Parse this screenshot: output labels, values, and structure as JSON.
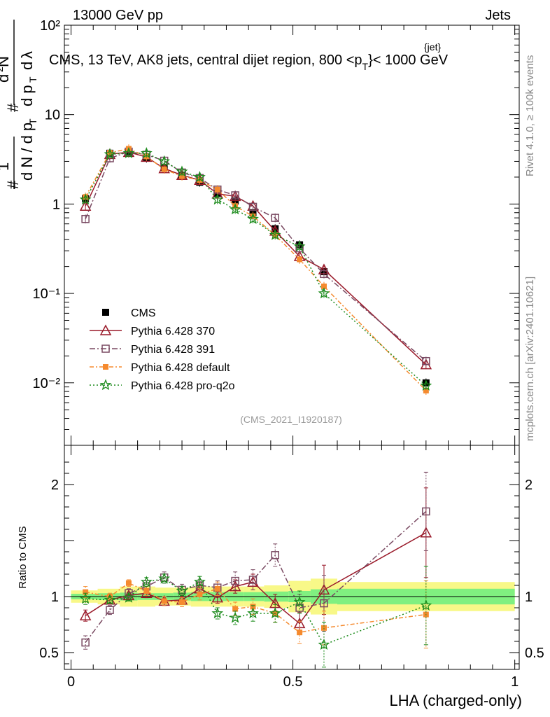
{
  "header": {
    "left": "13000 GeV pp",
    "right": "Jets"
  },
  "side_labels": {
    "rivet": "Rivet 4.1.0, ≥ 100k events",
    "source": "mcplots.cern.ch [arXiv:2401.10621]"
  },
  "main_title": {
    "prefix": "CMS, 13 TeV, AK8 jets, central dijet region, 800 <p",
    "sup": "{jet}",
    "sub": "T",
    "suffix": "}< 1000 GeV"
  },
  "analysis_id": "(CMS_2021_I1920187)",
  "y_axis_label_main": "# 1/dN/dp_T # d²N/dp_T dλ",
  "colors": {
    "cms": "#000000",
    "p370": "#9a1a2a",
    "p391": "#7a4a62",
    "default": "#f58a2e",
    "proq2o": "#1a8a1a",
    "band_inner": "#80f080",
    "band_outer": "#f8f888"
  },
  "chart_data": [
    {
      "type": "line",
      "title": "CMS, 13 TeV, AK8 jets, central dijet region, 800 <p_T^{jet}< 1000 GeV",
      "xlabel": "LHA (charged-only)",
      "ylabel": "1/dN/dp_T d²N/dp_T dλ",
      "yscale": "log",
      "ylim": [
        0.002,
        100
      ],
      "xlim": [
        -0.015,
        1.01
      ],
      "y_ticks": [
        {
          "v": 0.01,
          "label": "10⁻²"
        },
        {
          "v": 0.1,
          "label": "10⁻¹"
        },
        {
          "v": 1,
          "label": "1"
        },
        {
          "v": 10,
          "label": "10"
        },
        {
          "v": 100,
          "label": "10²"
        }
      ],
      "x": [
        0.0325,
        0.0875,
        0.13,
        0.17,
        0.21,
        0.25,
        0.29,
        0.33,
        0.37,
        0.41,
        0.46,
        0.515,
        0.57,
        0.8
      ],
      "legend_position": "bottom-left",
      "series": [
        {
          "name": "CMS",
          "key": "cms",
          "values": [
            1.15,
            3.7,
            3.75,
            3.25,
            2.55,
            2.1,
            1.75,
            1.32,
            1.08,
            0.8,
            0.53,
            0.35,
            0.175,
            0.01
          ]
        },
        {
          "name": "Pythia 6.428 370",
          "key": "p370",
          "values": [
            0.95,
            3.6,
            3.8,
            3.35,
            2.5,
            2.1,
            1.85,
            1.3,
            1.22,
            0.95,
            0.5,
            0.26,
            0.185,
            0.016
          ]
        },
        {
          "name": "Pythia 6.428 391",
          "key": "p391",
          "values": [
            0.68,
            3.25,
            3.85,
            3.55,
            3.05,
            2.25,
            1.95,
            1.45,
            1.25,
            0.93,
            0.7,
            0.32,
            0.165,
            0.0175
          ]
        },
        {
          "name": "Pythia 6.428 default",
          "key": "default",
          "values": [
            1.2,
            3.75,
            4.15,
            3.4,
            2.45,
            2.05,
            1.85,
            1.45,
            0.95,
            0.73,
            0.45,
            0.24,
            0.12,
            0.0082
          ]
        },
        {
          "name": "Pythia 6.428 pro-q2o",
          "key": "proq2o",
          "values": [
            1.12,
            3.6,
            3.7,
            3.7,
            3.0,
            2.3,
            2.0,
            1.12,
            0.87,
            0.68,
            0.45,
            0.335,
            0.1,
            0.0093
          ]
        }
      ]
    },
    {
      "type": "line",
      "title": "",
      "xlabel": "LHA (charged-only)",
      "ylabel": "Ratio to CMS",
      "ylim": [
        0.35,
        2.35
      ],
      "xlim": [
        -0.015,
        1.01
      ],
      "y_ticks": [
        {
          "v": 0.5,
          "label": "0.5"
        },
        {
          "v": 1,
          "label": "1"
        },
        {
          "v": 1.5,
          "label": ""
        },
        {
          "v": 2,
          "label": "2"
        }
      ],
      "x_ticks": [
        {
          "v": 0,
          "label": "0"
        },
        {
          "v": 0.5,
          "label": "0.5"
        },
        {
          "v": 1,
          "label": "1"
        }
      ],
      "x": [
        0.0325,
        0.0875,
        0.13,
        0.17,
        0.21,
        0.25,
        0.29,
        0.33,
        0.37,
        0.41,
        0.46,
        0.515,
        0.57,
        0.8
      ],
      "bins": [
        {
          "x0": 0.0,
          "x1": 0.06,
          "inner": 0.025,
          "outer": 0.055
        },
        {
          "x0": 0.06,
          "x1": 0.11,
          "inner": 0.03,
          "outer": 0.07
        },
        {
          "x0": 0.11,
          "x1": 0.15,
          "inner": 0.035,
          "outer": 0.09
        },
        {
          "x0": 0.15,
          "x1": 0.19,
          "inner": 0.03,
          "outer": 0.09
        },
        {
          "x0": 0.19,
          "x1": 0.23,
          "inner": 0.03,
          "outer": 0.08
        },
        {
          "x0": 0.23,
          "x1": 0.27,
          "inner": 0.035,
          "outer": 0.08
        },
        {
          "x0": 0.27,
          "x1": 0.31,
          "inner": 0.04,
          "outer": 0.09
        },
        {
          "x0": 0.31,
          "x1": 0.35,
          "inner": 0.04,
          "outer": 0.09
        },
        {
          "x0": 0.35,
          "x1": 0.39,
          "inner": 0.04,
          "outer": 0.09
        },
        {
          "x0": 0.39,
          "x1": 0.435,
          "inner": 0.04,
          "outer": 0.09
        },
        {
          "x0": 0.435,
          "x1": 0.49,
          "inner": 0.045,
          "outer": 0.1
        },
        {
          "x0": 0.49,
          "x1": 0.54,
          "inner": 0.05,
          "outer": 0.14
        },
        {
          "x0": 0.54,
          "x1": 0.6,
          "inner": 0.065,
          "outer": 0.16
        },
        {
          "x0": 0.6,
          "x1": 1.0,
          "inner": 0.07,
          "outer": 0.13
        }
      ],
      "series": [
        {
          "name": "Pythia 6.428 370",
          "key": "p370",
          "values": [
            0.83,
            0.97,
            1.01,
            1.03,
            0.96,
            0.97,
            1.07,
            0.99,
            1.09,
            1.13,
            0.94,
            0.76,
            1.06,
            1.57
          ],
          "errors": [
            0.05,
            0.03,
            0.03,
            0.04,
            0.04,
            0.04,
            0.05,
            0.05,
            0.06,
            0.07,
            0.08,
            0.1,
            0.22,
            0.4
          ]
        },
        {
          "name": "Pythia 6.428 391",
          "key": "p391",
          "values": [
            0.59,
            0.88,
            1.03,
            1.09,
            1.17,
            1.06,
            1.1,
            1.08,
            1.14,
            1.15,
            1.37,
            0.9,
            0.94,
            1.76
          ],
          "errors": [
            0.06,
            0.04,
            0.04,
            0.05,
            0.05,
            0.05,
            0.05,
            0.06,
            0.08,
            0.09,
            0.1,
            0.12,
            0.25,
            0.35
          ]
        },
        {
          "name": "Pythia 6.428 default",
          "key": "default",
          "values": [
            1.04,
            1.0,
            1.12,
            1.05,
            0.96,
            0.95,
            1.02,
            1.07,
            0.89,
            0.91,
            0.85,
            0.68,
            0.72,
            0.84
          ],
          "errors": [
            0.05,
            0.03,
            0.03,
            0.04,
            0.04,
            0.04,
            0.05,
            0.06,
            0.06,
            0.07,
            0.08,
            0.1,
            0.15,
            0.3
          ]
        },
        {
          "name": "Pythia 6.428 pro-q2o",
          "key": "proq2o",
          "values": [
            0.98,
            0.97,
            0.99,
            1.13,
            1.16,
            1.05,
            1.13,
            0.85,
            0.81,
            0.85,
            0.85,
            0.95,
            0.57,
            0.92
          ],
          "errors": [
            0.05,
            0.03,
            0.03,
            0.04,
            0.04,
            0.04,
            0.05,
            0.05,
            0.06,
            0.07,
            0.08,
            0.1,
            0.2,
            0.35
          ]
        }
      ]
    }
  ]
}
